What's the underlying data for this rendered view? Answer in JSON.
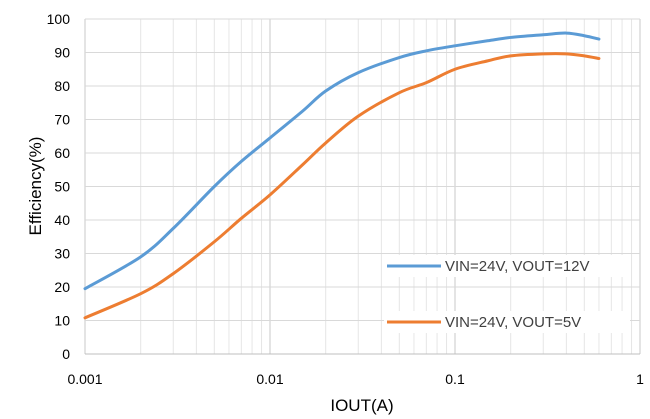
{
  "chart_data": {
    "type": "line",
    "title": "",
    "xlabel": "IOUT(A)",
    "ylabel": "Efficiency(%)",
    "xscale": "log",
    "xlim": [
      0.001,
      1
    ],
    "ylim": [
      0,
      100
    ],
    "x_ticks": [
      0.001,
      0.01,
      0.1,
      1
    ],
    "x_tick_labels": [
      "0.001",
      "0.01",
      "0.1",
      "1"
    ],
    "y_ticks": [
      0,
      10,
      20,
      30,
      40,
      50,
      60,
      70,
      80,
      90,
      100
    ],
    "y_tick_labels": [
      "0",
      "10",
      "20",
      "30",
      "40",
      "50",
      "60",
      "70",
      "80",
      "90",
      "100"
    ],
    "grid": "major and minor (log) vertical, major horizontal",
    "legend_position": "inside-bottom-right",
    "series": [
      {
        "name": "VIN=24V, VOUT=12V",
        "color": "#5b9bd5",
        "x": [
          0.001,
          0.002,
          0.003,
          0.005,
          0.007,
          0.01,
          0.015,
          0.02,
          0.03,
          0.05,
          0.07,
          0.1,
          0.15,
          0.2,
          0.3,
          0.4,
          0.5,
          0.6
        ],
        "y": [
          19.5,
          29,
          37.5,
          50,
          57.5,
          64.5,
          72.5,
          78.5,
          84,
          88.5,
          90.5,
          92,
          93.5,
          94.5,
          95.3,
          95.8,
          95,
          94
        ]
      },
      {
        "name": "VIN=24V, VOUT=5V",
        "color": "#ed7d31",
        "x": [
          0.001,
          0.002,
          0.003,
          0.005,
          0.007,
          0.01,
          0.015,
          0.02,
          0.03,
          0.05,
          0.07,
          0.1,
          0.15,
          0.2,
          0.3,
          0.4,
          0.5,
          0.6
        ],
        "y": [
          10.8,
          18,
          24,
          33.5,
          40.5,
          47.5,
          56.5,
          63,
          71,
          78,
          81,
          85,
          87.5,
          89,
          89.6,
          89.6,
          89,
          88.2
        ]
      }
    ]
  }
}
